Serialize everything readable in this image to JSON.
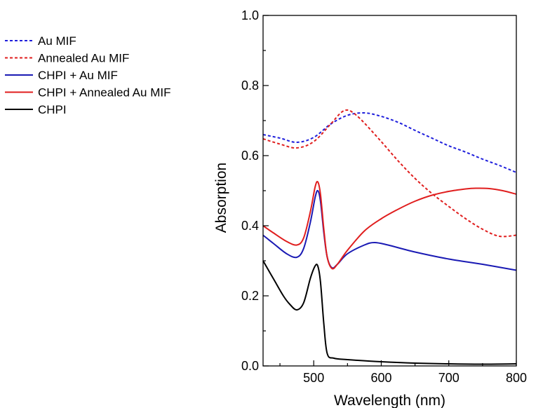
{
  "chart_data": {
    "type": "line",
    "xlabel": "Wavelength (nm)",
    "ylabel": "Absorption",
    "xlim": [
      425,
      800
    ],
    "ylim": [
      0.0,
      1.0
    ],
    "x_ticks": [
      500,
      600,
      700,
      800
    ],
    "x_tick_labels": [
      "500",
      "600",
      "700",
      "800"
    ],
    "y_ticks": [
      0.0,
      0.2,
      0.4,
      0.6,
      0.8,
      1.0
    ],
    "y_tick_labels": [
      "0.0",
      "0.2",
      "0.4",
      "0.6",
      "0.8",
      "1.0"
    ],
    "grid": false,
    "legend_position": "left, outside plot",
    "series": [
      {
        "name": "Au MIF",
        "color": "#1f1fdc",
        "style": "dashed",
        "x": [
          425,
          450,
          475,
          500,
          525,
          550,
          575,
          600,
          625,
          650,
          675,
          700,
          725,
          750,
          775,
          800
        ],
        "y": [
          0.66,
          0.65,
          0.638,
          0.652,
          0.69,
          0.715,
          0.722,
          0.712,
          0.695,
          0.672,
          0.65,
          0.628,
          0.61,
          0.59,
          0.572,
          0.552
        ]
      },
      {
        "name": "Annealed Au MIF",
        "color": "#e01e1e",
        "style": "dashed",
        "x": [
          425,
          450,
          475,
          500,
          525,
          540,
          550,
          560,
          575,
          600,
          625,
          650,
          675,
          700,
          725,
          750,
          775,
          800
        ],
        "y": [
          0.648,
          0.633,
          0.622,
          0.64,
          0.69,
          0.722,
          0.73,
          0.72,
          0.693,
          0.64,
          0.585,
          0.535,
          0.492,
          0.455,
          0.42,
          0.39,
          0.37,
          0.373
        ]
      },
      {
        "name": "CHPI + Au MIF",
        "color": "#1a1ab4",
        "style": "solid",
        "x": [
          425,
          440,
          460,
          475,
          485,
          495,
          502,
          506,
          510,
          515,
          520,
          527,
          535,
          550,
          575,
          590,
          610,
          650,
          700,
          750,
          800
        ],
        "y": [
          0.373,
          0.35,
          0.32,
          0.31,
          0.335,
          0.41,
          0.48,
          0.5,
          0.47,
          0.38,
          0.31,
          0.28,
          0.29,
          0.32,
          0.345,
          0.352,
          0.345,
          0.325,
          0.305,
          0.29,
          0.273
        ]
      },
      {
        "name": "CHPI + Annealed Au MIF",
        "color": "#e01e1e",
        "style": "solid",
        "x": [
          425,
          440,
          460,
          475,
          485,
          495,
          502,
          506,
          510,
          515,
          520,
          527,
          535,
          550,
          575,
          600,
          625,
          650,
          675,
          700,
          725,
          740,
          760,
          780,
          800
        ],
        "y": [
          0.4,
          0.38,
          0.355,
          0.345,
          0.365,
          0.44,
          0.51,
          0.525,
          0.49,
          0.39,
          0.31,
          0.278,
          0.29,
          0.33,
          0.385,
          0.42,
          0.447,
          0.47,
          0.487,
          0.498,
          0.505,
          0.507,
          0.506,
          0.5,
          0.49
        ]
      },
      {
        "name": "CHPI",
        "color": "#000000",
        "style": "solid",
        "x": [
          425,
          440,
          455,
          465,
          475,
          485,
          495,
          502,
          506,
          510,
          515,
          520,
          530,
          550,
          600,
          650,
          700,
          750,
          800
        ],
        "y": [
          0.3,
          0.25,
          0.2,
          0.175,
          0.16,
          0.18,
          0.25,
          0.285,
          0.285,
          0.24,
          0.12,
          0.035,
          0.022,
          0.018,
          0.012,
          0.008,
          0.006,
          0.005,
          0.006
        ]
      }
    ]
  }
}
